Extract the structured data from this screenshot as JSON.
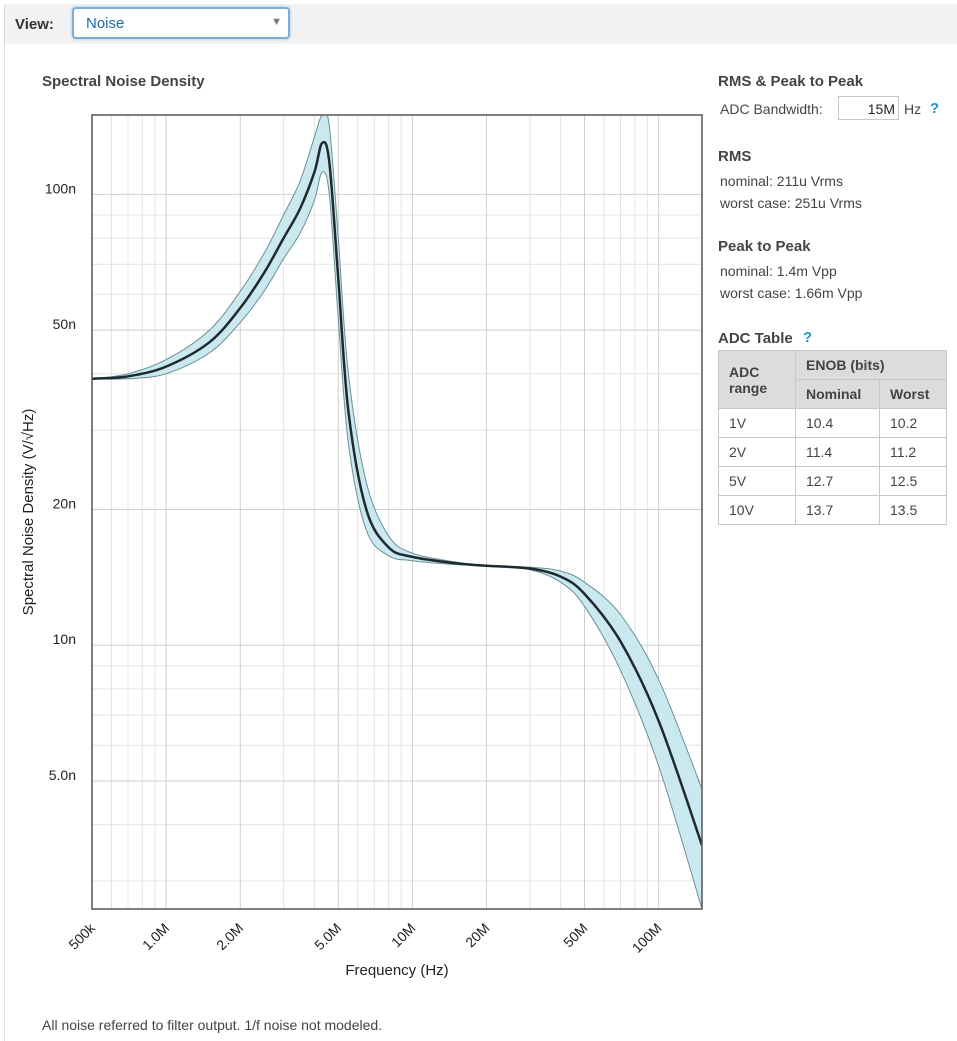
{
  "toolbar": {
    "view_label": "View:",
    "view_value": "Noise",
    "dropdown_arrow": "▼"
  },
  "chart_data": {
    "type": "area",
    "title": "Spectral Noise Density",
    "xlabel": "Frequency (Hz)",
    "ylabel": "Spectral Noise Density (V/√Hz)",
    "x_scale": "log",
    "y_scale": "log",
    "xlim": [
      500000,
      150000000
    ],
    "ylim": [
      2.6e-09,
      1.5e-07
    ],
    "x_tick_labels": [
      "500k",
      "1.0M",
      "2.0M",
      "5.0M",
      "10M",
      "20M",
      "50M",
      "100M"
    ],
    "x_tick_values": [
      500000,
      1000000,
      2000000,
      5000000,
      10000000,
      20000000,
      50000000,
      100000000
    ],
    "y_tick_labels": [
      "100n",
      "50n",
      "20n",
      "10n",
      "5.0n"
    ],
    "y_tick_values": [
      1e-07,
      5e-08,
      2e-08,
      1e-08,
      5e-09
    ],
    "grid": true,
    "legend": "none",
    "colors": {
      "band_fill": "#c9e8ef",
      "band_edge": "#6e8e96",
      "nominal_line": "#1f2a2e"
    },
    "series": [
      {
        "role": "nominal",
        "x": [
          500000,
          700000,
          1000000,
          1500000,
          2000000,
          2500000,
          3000000,
          3500000,
          4000000,
          4300000,
          4600000,
          5000000,
          5500000,
          6500000,
          8000000,
          10000000,
          15000000,
          20000000,
          30000000,
          40000000,
          50000000,
          70000000,
          100000000,
          150000000
        ],
        "y": [
          3.9e-08,
          3.95e-08,
          4.15e-08,
          4.7e-08,
          5.6e-08,
          6.7e-08,
          8e-08,
          9.3e-08,
          1.12e-07,
          1.3e-07,
          1.18e-07,
          6.5e-08,
          3.3e-08,
          2e-08,
          1.65e-08,
          1.57e-08,
          1.52e-08,
          1.5e-08,
          1.48e-08,
          1.42e-08,
          1.3e-08,
          1.02e-08,
          6.8e-09,
          3.6e-09
        ]
      },
      {
        "role": "worst-case-upper",
        "x": [
          500000,
          700000,
          1000000,
          1500000,
          2000000,
          2500000,
          3000000,
          3500000,
          4000000,
          4300000,
          4600000,
          5000000,
          5500000,
          6500000,
          8000000,
          10000000,
          15000000,
          20000000,
          30000000,
          40000000,
          50000000,
          70000000,
          100000000,
          150000000
        ],
        "y": [
          3.9e-08,
          4e-08,
          4.3e-08,
          5e-08,
          6.1e-08,
          7.4e-08,
          9e-08,
          1.07e-07,
          1.34e-07,
          1.5e-07,
          1.42e-07,
          8e-08,
          4e-08,
          2.3e-08,
          1.75e-08,
          1.6e-08,
          1.53e-08,
          1.5e-08,
          1.49e-08,
          1.46e-08,
          1.38e-08,
          1.17e-08,
          8.4e-09,
          4.8e-09
        ]
      },
      {
        "role": "worst-case-lower",
        "x": [
          500000,
          700000,
          1000000,
          1500000,
          2000000,
          2500000,
          3000000,
          3500000,
          4000000,
          4300000,
          4600000,
          5000000,
          5500000,
          6500000,
          8000000,
          10000000,
          15000000,
          20000000,
          30000000,
          40000000,
          50000000,
          70000000,
          100000000,
          150000000
        ],
        "y": [
          3.9e-08,
          3.9e-08,
          4e-08,
          4.45e-08,
          5.2e-08,
          6.1e-08,
          7.2e-08,
          8.2e-08,
          9.7e-08,
          1.12e-07,
          1e-07,
          5.3e-08,
          2.8e-08,
          1.8e-08,
          1.58e-08,
          1.54e-08,
          1.51e-08,
          1.5e-08,
          1.47e-08,
          1.38e-08,
          1.22e-08,
          8.8e-09,
          5.4e-09,
          2.6e-09
        ]
      }
    ]
  },
  "sidebar": {
    "rms_pp_title": "RMS & Peak to Peak",
    "bw_label": "ADC Bandwidth:",
    "bw_value": "15M",
    "bw_unit": "Hz",
    "help_glyph": "?",
    "rms_title": "RMS",
    "rms_nominal": "nominal:  211u Vrms",
    "rms_worst": "worst case:  251u Vrms",
    "pp_title": "Peak to Peak",
    "pp_nominal": "nominal:  1.4m Vpp",
    "pp_worst": "worst case:  1.66m Vpp",
    "adc_table_title": "ADC Table",
    "adc_table": {
      "col_range_1": "ADC",
      "col_range_2": "range",
      "col_enob": "ENOB (bits)",
      "col_nominal": "Nominal",
      "col_worst": "Worst",
      "rows": [
        {
          "range": "1V",
          "nominal": "10.4",
          "worst": "10.2"
        },
        {
          "range": "2V",
          "nominal": "11.4",
          "worst": "11.2"
        },
        {
          "range": "5V",
          "nominal": "12.7",
          "worst": "12.5"
        },
        {
          "range": "10V",
          "nominal": "13.7",
          "worst": "13.5"
        }
      ]
    }
  },
  "footnote": "All noise referred to filter output. 1/f noise not modeled."
}
